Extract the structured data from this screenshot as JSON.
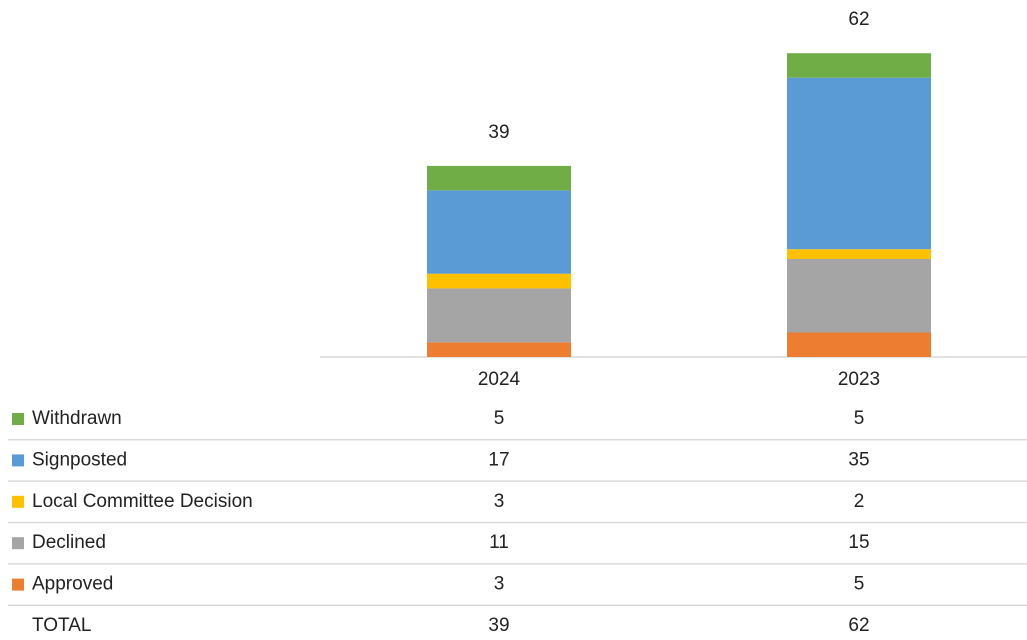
{
  "chart_data": {
    "type": "stacked_bar",
    "categories": [
      "2024",
      "2023"
    ],
    "series": [
      {
        "name": "Approved",
        "color": "#ed7d31",
        "values": [
          3,
          5
        ]
      },
      {
        "name": "Declined",
        "color": "#a5a5a5",
        "values": [
          11,
          15
        ]
      },
      {
        "name": "Local Committee Decision",
        "color": "#ffc000",
        "values": [
          3,
          2
        ]
      },
      {
        "name": "Signposted",
        "color": "#5b9bd5",
        "values": [
          17,
          35
        ]
      },
      {
        "name": "Withdrawn",
        "color": "#70ad47",
        "values": [
          5,
          5
        ]
      }
    ],
    "total_label": "TOTAL",
    "totals": [
      39,
      62
    ]
  }
}
